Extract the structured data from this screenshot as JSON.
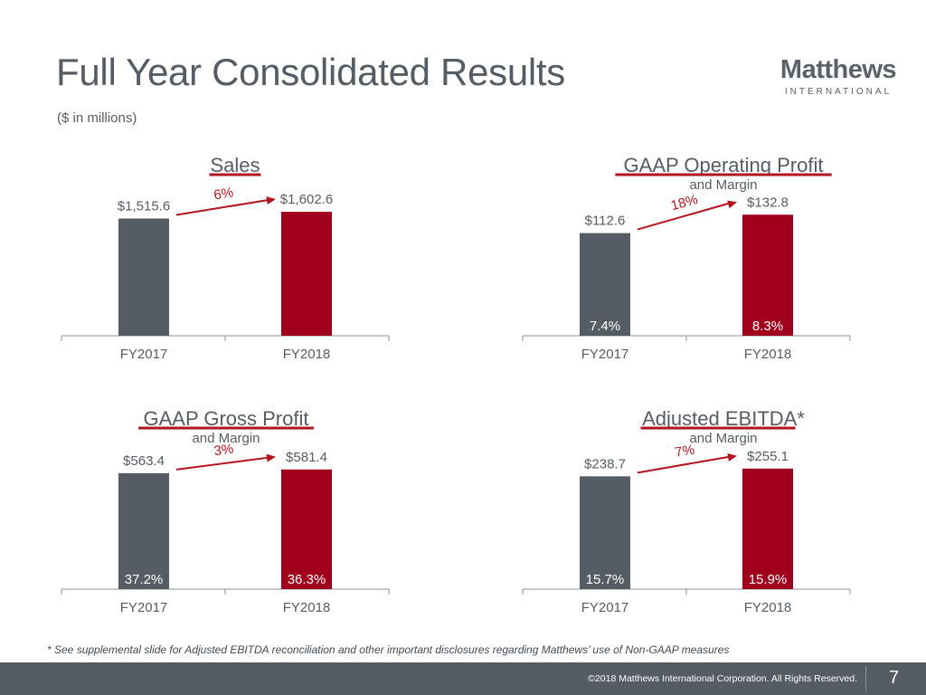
{
  "header": {
    "title": "Full Year Consolidated Results",
    "subtitle": "($ in millions)",
    "logo_name": "Matthews",
    "logo_sub": "INTERNATIONAL"
  },
  "colors": {
    "gray_bar": "#555c63",
    "red_bar": "#a0001b",
    "accent_red": "#b3141e",
    "text": "#555c63"
  },
  "chart_data": [
    {
      "type": "bar",
      "title": "Sales",
      "subtitle": "",
      "categories": [
        "FY2017",
        "FY2018"
      ],
      "values": [
        1515.6,
        1602.6
      ],
      "value_labels": [
        "$1,515.6",
        "$1,602.6"
      ],
      "margin_labels": [
        "",
        ""
      ],
      "growth_label": "6%",
      "xlabel": "",
      "ylabel": "",
      "ylim": [
        0,
        1650
      ]
    },
    {
      "type": "bar",
      "title": "GAAP Operating Profit",
      "subtitle": "and Margin",
      "categories": [
        "FY2017",
        "FY2018"
      ],
      "values": [
        112.6,
        132.8
      ],
      "value_labels": [
        "$112.6",
        "$132.8"
      ],
      "margin_labels": [
        "7.4%",
        "8.3%"
      ],
      "growth_label": "18%",
      "xlabel": "",
      "ylabel": "",
      "ylim": [
        0,
        140
      ]
    },
    {
      "type": "bar",
      "title": "GAAP Gross Profit",
      "subtitle": "and Margin",
      "categories": [
        "FY2017",
        "FY2018"
      ],
      "values": [
        563.4,
        581.4
      ],
      "value_labels": [
        "$563.4",
        "$581.4"
      ],
      "margin_labels": [
        "37.2%",
        "36.3%"
      ],
      "growth_label": "3%",
      "xlabel": "",
      "ylabel": "",
      "ylim": [
        0,
        620
      ]
    },
    {
      "type": "bar",
      "title": "Adjusted EBITDA*",
      "subtitle": "and Margin",
      "categories": [
        "FY2017",
        "FY2018"
      ],
      "values": [
        238.7,
        255.1
      ],
      "value_labels": [
        "$238.7",
        "$255.1"
      ],
      "margin_labels": [
        "15.7%",
        "15.9%"
      ],
      "growth_label": "7%",
      "xlabel": "",
      "ylabel": "",
      "ylim": [
        0,
        270
      ]
    }
  ],
  "footnote": "* See supplemental slide for Adjusted EBITDA reconciliation and other important disclosures regarding Matthews’ use of Non-GAAP measures",
  "footer": {
    "copyright": "©2018 Matthews International Corporation. All Rights Reserved.",
    "page_number": "7"
  }
}
